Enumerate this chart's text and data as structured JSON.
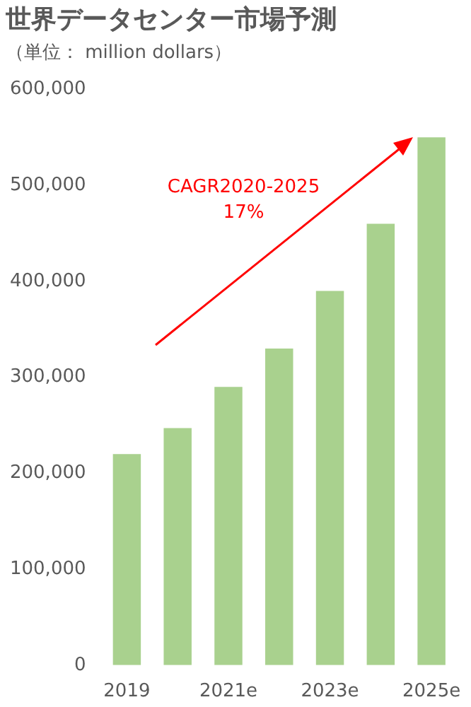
{
  "chart_data": {
    "type": "bar",
    "title": "世界データセンター市場予測",
    "subtitle": "（単位： million dollars）",
    "categories": [
      "2019",
      null,
      "2021e",
      null,
      "2023e",
      null,
      "2025e"
    ],
    "values": [
      220000,
      247000,
      290000,
      330000,
      390000,
      460000,
      550000
    ],
    "color": "#a9d18e",
    "ylim": [
      0,
      600000
    ],
    "yticks": [
      0,
      {
        "value": 100000,
        "label": "100,000"
      },
      {
        "value": 200000,
        "label": "200,000"
      },
      {
        "value": 300000,
        "label": "300,000"
      },
      {
        "value": 400000,
        "label": "400,000"
      },
      {
        "value": 500000,
        "label": "500,000"
      },
      {
        "value": 600000,
        "label": "600,000"
      }
    ],
    "annotations": [
      "CAGR2020-2025",
      "17%"
    ],
    "legend": false
  }
}
